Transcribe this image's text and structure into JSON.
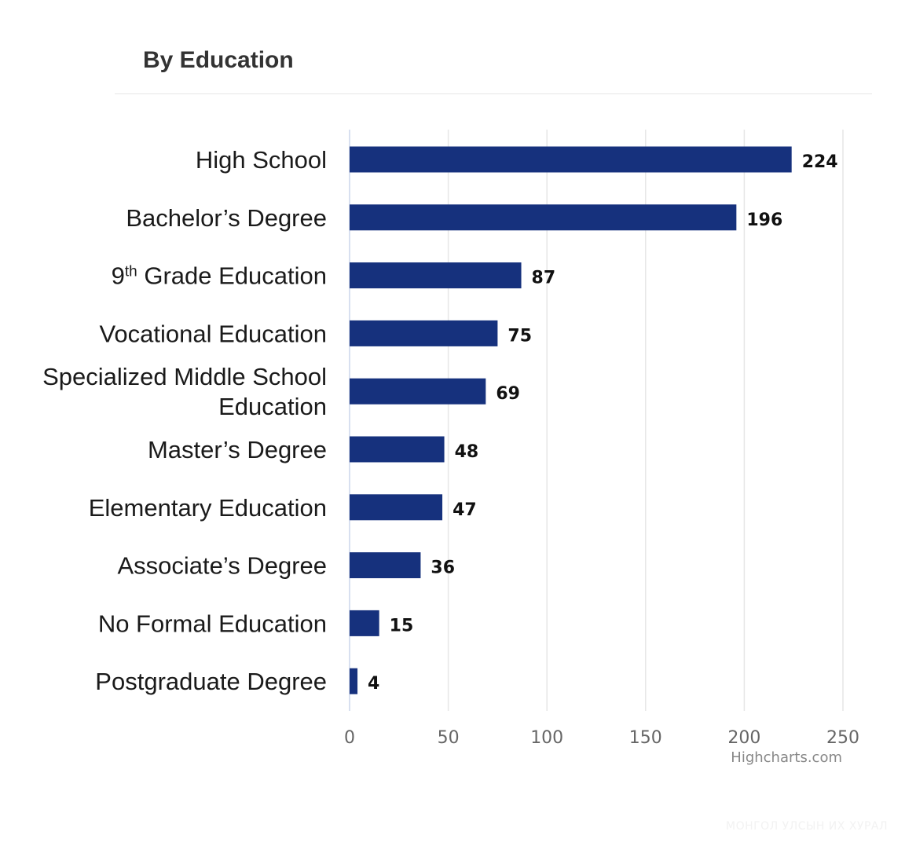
{
  "title": "By Education",
  "credits": "Highcharts.com",
  "watermark": "МОНГОЛ УЛСЫН ИХ ХУРАЛ",
  "colors": {
    "bar": "#16317d",
    "grid": "#e6e6e6",
    "axis_line": "#ccd6eb"
  },
  "chart_data": {
    "type": "bar",
    "orientation": "horizontal",
    "title": "By Education",
    "categories": [
      [
        "High School"
      ],
      [
        "Bachelor’s Degree"
      ],
      [
        "9th Grade Education"
      ],
      [
        "Vocational Education"
      ],
      [
        "Specialized Middle School",
        "Education"
      ],
      [
        "Master’s Degree"
      ],
      [
        "Elementary Education"
      ],
      [
        "Associate’s Degree"
      ],
      [
        "No Formal Education"
      ],
      [
        "Postgraduate Degree"
      ]
    ],
    "values": [
      224,
      196,
      87,
      75,
      69,
      48,
      47,
      36,
      15,
      4
    ],
    "xlim": [
      0,
      250
    ],
    "ticks": [
      0,
      50,
      100,
      150,
      200,
      250
    ],
    "grid": true,
    "data_labels": true
  }
}
